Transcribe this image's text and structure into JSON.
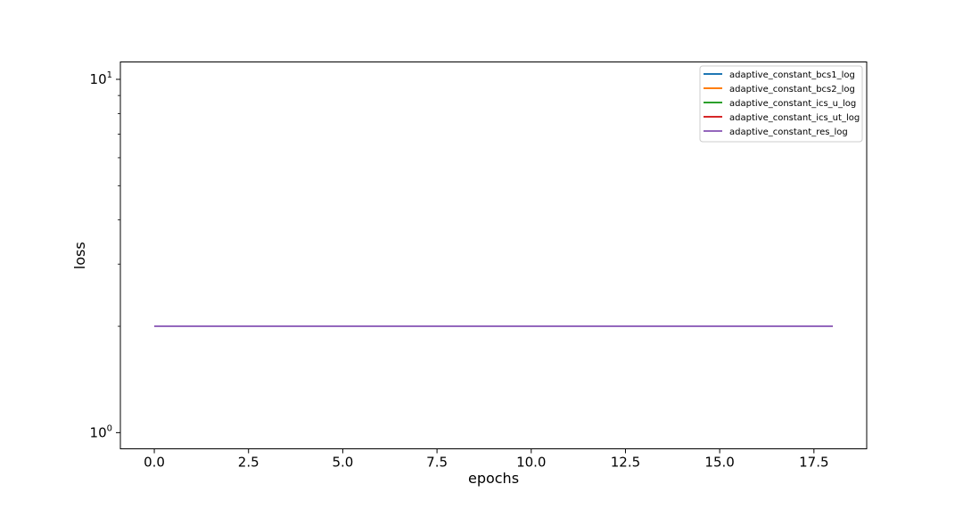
{
  "chart_data": {
    "type": "line",
    "title": "",
    "xlabel": "epochs",
    "ylabel": "loss",
    "yscale": "log",
    "xlim": [
      -0.9,
      18.9
    ],
    "ylim": [
      0.9,
      11.2
    ],
    "grid": false,
    "legend_position": "top-right",
    "x_ticks": [
      {
        "value": 0.0,
        "label": "0.0"
      },
      {
        "value": 2.5,
        "label": "2.5"
      },
      {
        "value": 5.0,
        "label": "5.0"
      },
      {
        "value": 7.5,
        "label": "7.5"
      },
      {
        "value": 10.0,
        "label": "10.0"
      },
      {
        "value": 12.5,
        "label": "12.5"
      },
      {
        "value": 15.0,
        "label": "15.0"
      },
      {
        "value": 17.5,
        "label": "17.5"
      }
    ],
    "y_major_ticks": [
      {
        "value": 1,
        "base": "10",
        "exp": "0"
      },
      {
        "value": 10,
        "base": "10",
        "exp": "1"
      }
    ],
    "y_minor_ticks": [
      2,
      3,
      4,
      5,
      6,
      7,
      8,
      9
    ],
    "series": [
      {
        "name": "adaptive_constant_bcs1_log",
        "color": "#1f77b4",
        "x": [
          0,
          18
        ],
        "y": [
          2.0,
          2.0
        ]
      },
      {
        "name": "adaptive_constant_bcs2_log",
        "color": "#ff7f0e",
        "x": [
          0,
          18
        ],
        "y": [
          2.0,
          2.0
        ]
      },
      {
        "name": "adaptive_constant_ics_u_log",
        "color": "#2ca02c",
        "x": [
          0,
          18
        ],
        "y": [
          2.0,
          2.0
        ]
      },
      {
        "name": "adaptive_constant_ics_ut_log",
        "color": "#d62728",
        "x": [
          0,
          18
        ],
        "y": [
          2.0,
          2.0
        ]
      },
      {
        "name": "adaptive_constant_res_log",
        "color": "#9467bd",
        "x": [
          0,
          18
        ],
        "y": [
          2.0,
          2.0
        ]
      }
    ]
  }
}
